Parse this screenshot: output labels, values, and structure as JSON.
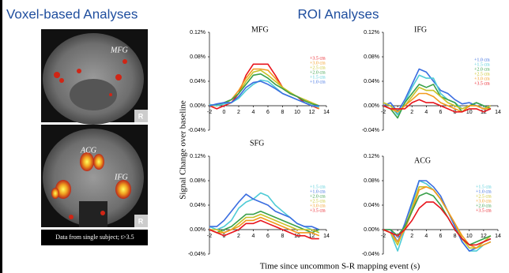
{
  "voxel": {
    "title": "Voxel-based Analyses",
    "caption": "Data from single subject; t>3.5",
    "labels": [
      "MFG",
      "ACG",
      "IFG"
    ],
    "side": "R"
  },
  "roi": {
    "title": "ROI Analyses",
    "ylabel": "Signal Change over baseline",
    "xlabel": "Time since uncommon S-R mapping event (s)"
  },
  "chart_data": [
    {
      "type": "line",
      "title": "MFG",
      "x": [
        -2,
        -1,
        0,
        1,
        2,
        3,
        4,
        5,
        6,
        7,
        8,
        9,
        10,
        11,
        12,
        13
      ],
      "xlim": [
        -2,
        14
      ],
      "xticks": [
        -2,
        0,
        2,
        4,
        6,
        8,
        10,
        12,
        14
      ],
      "ylim": [
        -0.04,
        0.12
      ],
      "yticks": [
        {
          "value": -0.04,
          "label": "-0.04%"
        },
        {
          "value": 0.0,
          "label": "0.00%"
        },
        {
          "value": 0.04,
          "label": "0.04%"
        },
        {
          "value": 0.08,
          "label": "0.08%"
        },
        {
          "value": 0.12,
          "label": "0.12%"
        }
      ],
      "series": [
        {
          "name": "+3.5 cm",
          "color": "#e8141c",
          "values": [
            0,
            -0.005,
            0,
            0.005,
            0.02,
            0.05,
            0.068,
            0.068,
            0.068,
            0.05,
            0.03,
            0.02,
            0.015,
            0.005,
            0,
            -0.005
          ]
        },
        {
          "name": "+3.0 cm",
          "color": "#f29a1e",
          "values": [
            0,
            0,
            0.005,
            0.01,
            0.025,
            0.045,
            0.06,
            0.06,
            0.058,
            0.045,
            0.03,
            0.02,
            0.015,
            0.01,
            0.005,
            -0.005
          ]
        },
        {
          "name": "+2.5 cm",
          "color": "#c9c227",
          "values": [
            0.002,
            0,
            0.003,
            0.01,
            0.02,
            0.04,
            0.055,
            0.058,
            0.05,
            0.04,
            0.03,
            0.022,
            0.015,
            0.01,
            0.005,
            0
          ]
        },
        {
          "name": "+2.0 cm",
          "color": "#3aa04a",
          "values": [
            0,
            0.002,
            0.005,
            0.01,
            0.02,
            0.035,
            0.05,
            0.052,
            0.045,
            0.035,
            0.028,
            0.02,
            0.015,
            0.008,
            0.003,
            0
          ]
        },
        {
          "name": "+1.5 cm",
          "color": "#4ecbd6",
          "values": [
            0.002,
            0,
            0.003,
            0.005,
            0.012,
            0.025,
            0.035,
            0.042,
            0.04,
            0.03,
            0.02,
            0.015,
            0.01,
            0.005,
            0,
            -0.002
          ]
        },
        {
          "name": "+1.0 cm",
          "color": "#3a6de0",
          "values": [
            0,
            0.003,
            0.005,
            0.005,
            0.015,
            0.03,
            0.038,
            0.04,
            0.035,
            0.028,
            0.02,
            0.015,
            0.01,
            0.005,
            0,
            0
          ]
        }
      ]
    },
    {
      "type": "line",
      "title": "IFG",
      "x": [
        -2,
        -1,
        0,
        1,
        2,
        3,
        4,
        5,
        6,
        7,
        8,
        9,
        10,
        11,
        12,
        13
      ],
      "xlim": [
        -2,
        14
      ],
      "xticks": [
        -2,
        0,
        2,
        4,
        6,
        8,
        10,
        12,
        14
      ],
      "ylim": [
        -0.04,
        0.12
      ],
      "yticks": [
        {
          "value": -0.04,
          "label": "-0.04%"
        },
        {
          "value": 0.0,
          "label": "0.00%"
        },
        {
          "value": 0.04,
          "label": "0.04%"
        },
        {
          "value": 0.08,
          "label": "0.08%"
        },
        {
          "value": 0.12,
          "label": "0.12%"
        }
      ],
      "series": [
        {
          "name": "+1.0 cm",
          "color": "#3a6de0",
          "values": [
            0,
            0.005,
            -0.01,
            0.01,
            0.035,
            0.06,
            0.055,
            0.04,
            0.025,
            0.02,
            0.01,
            0.003,
            0.005,
            0,
            -0.005,
            0
          ]
        },
        {
          "name": "+1.5 cm",
          "color": "#4ecbd6",
          "values": [
            0.005,
            0,
            -0.015,
            0.005,
            0.03,
            0.05,
            0.045,
            0.045,
            0.02,
            0.01,
            0.005,
            -0.005,
            0,
            0.005,
            0,
            -0.005
          ]
        },
        {
          "name": "+2.0 cm",
          "color": "#3aa04a",
          "values": [
            0,
            -0.005,
            -0.02,
            0.005,
            0.02,
            0.035,
            0.03,
            0.035,
            0.015,
            0.01,
            0.005,
            -0.01,
            0,
            0.005,
            0,
            -0.005
          ]
        },
        {
          "name": "+2.5 cm",
          "color": "#c9c227",
          "values": [
            0.005,
            0,
            -0.01,
            0,
            0.015,
            0.03,
            0.025,
            0.025,
            0.015,
            0.005,
            0,
            -0.005,
            0,
            0,
            -0.005,
            0
          ]
        },
        {
          "name": "+3.0 cm",
          "color": "#f29a1e",
          "values": [
            0,
            -0.005,
            -0.01,
            0,
            0.01,
            0.02,
            0.02,
            0.015,
            0.005,
            0,
            -0.005,
            -0.01,
            0,
            0,
            -0.005,
            -0.005
          ]
        },
        {
          "name": "+3.5 cm",
          "color": "#e8141c",
          "values": [
            0,
            -0.005,
            -0.005,
            -0.005,
            0.005,
            0.01,
            0.005,
            0.005,
            0,
            -0.005,
            -0.01,
            -0.01,
            -0.005,
            -0.005,
            -0.01,
            -0.005
          ]
        }
      ]
    },
    {
      "type": "line",
      "title": "SFG",
      "x": [
        -2,
        -1,
        0,
        1,
        2,
        3,
        4,
        5,
        6,
        7,
        8,
        9,
        10,
        11,
        12,
        13
      ],
      "xlim": [
        -2,
        14
      ],
      "xticks": [
        -2,
        0,
        2,
        4,
        6,
        8,
        10,
        12,
        14
      ],
      "ylim": [
        -0.04,
        0.12
      ],
      "yticks": [
        {
          "value": -0.04,
          "label": "-0.04%"
        },
        {
          "value": 0.0,
          "label": "0.00%"
        },
        {
          "value": 0.04,
          "label": "0.04%"
        },
        {
          "value": 0.08,
          "label": "0.08%"
        },
        {
          "value": 0.12,
          "label": "0.12%"
        }
      ],
      "series": [
        {
          "name": "+1.5 cm",
          "color": "#4ecbd6",
          "values": [
            0.005,
            0,
            0.005,
            0.015,
            0.035,
            0.045,
            0.05,
            0.06,
            0.055,
            0.04,
            0.03,
            0.02,
            0.01,
            0.005,
            0,
            -0.005
          ]
        },
        {
          "name": "+1.0 cm",
          "color": "#3a6de0",
          "values": [
            0.005,
            0.005,
            0.015,
            0.03,
            0.045,
            0.058,
            0.05,
            0.045,
            0.04,
            0.03,
            0.025,
            0.02,
            0.01,
            0.005,
            0.005,
            0
          ]
        },
        {
          "name": "+2.0 cm",
          "color": "#3aa04a",
          "values": [
            0,
            -0.005,
            0,
            0.005,
            0.015,
            0.025,
            0.025,
            0.03,
            0.025,
            0.02,
            0.015,
            0.01,
            0.005,
            0,
            -0.005,
            0
          ]
        },
        {
          "name": "+2.5 cm",
          "color": "#c9c227",
          "values": [
            0,
            0,
            -0.005,
            0,
            0.01,
            0.02,
            0.02,
            0.025,
            0.02,
            0.015,
            0.01,
            0.005,
            0,
            0,
            0,
            -0.005
          ]
        },
        {
          "name": "+3.0 cm",
          "color": "#f29a1e",
          "values": [
            0,
            -0.005,
            -0.005,
            0,
            0.005,
            0.015,
            0.015,
            0.02,
            0.015,
            0.01,
            0.005,
            0,
            -0.005,
            -0.005,
            -0.005,
            -0.01
          ]
        },
        {
          "name": "+3.5 cm",
          "color": "#e8141c",
          "values": [
            0,
            -0.005,
            -0.01,
            -0.005,
            0,
            0.01,
            0.01,
            0.015,
            0.01,
            0.005,
            0,
            -0.005,
            -0.01,
            -0.01,
            -0.015,
            -0.015
          ]
        }
      ]
    },
    {
      "type": "line",
      "title": "ACG",
      "x": [
        -2,
        -1,
        0,
        1,
        2,
        3,
        4,
        5,
        6,
        7,
        8,
        9,
        10,
        11,
        12,
        13
      ],
      "xlim": [
        -2,
        14
      ],
      "xticks": [
        -2,
        0,
        2,
        4,
        6,
        8,
        10,
        12,
        14
      ],
      "ylim": [
        -0.04,
        0.12
      ],
      "yticks": [
        {
          "value": -0.04,
          "label": "-0.04%"
        },
        {
          "value": 0.0,
          "label": "0.00%"
        },
        {
          "value": 0.04,
          "label": "0.04%"
        },
        {
          "value": 0.08,
          "label": "0.08%"
        },
        {
          "value": 0.12,
          "label": "0.12%"
        }
      ],
      "series": [
        {
          "name": "+1.5 cm",
          "color": "#4ecbd6",
          "values": [
            0,
            -0.005,
            -0.035,
            0,
            0.04,
            0.08,
            0.075,
            0.065,
            0.05,
            0.03,
            0.005,
            -0.02,
            -0.035,
            -0.035,
            -0.025,
            -0.02
          ]
        },
        {
          "name": "+1.0 cm",
          "color": "#3a6de0",
          "values": [
            0,
            0,
            -0.02,
            0.01,
            0.045,
            0.08,
            0.08,
            0.07,
            0.055,
            0.03,
            0.005,
            -0.02,
            -0.035,
            -0.03,
            -0.02,
            -0.015
          ]
        },
        {
          "name": "+2.5 cm",
          "color": "#c9c227",
          "values": [
            0,
            -0.005,
            -0.025,
            0.005,
            0.035,
            0.07,
            0.07,
            0.065,
            0.05,
            0.03,
            0.01,
            -0.015,
            -0.03,
            -0.03,
            -0.02,
            -0.01
          ]
        },
        {
          "name": "+3.0 cm",
          "color": "#f29a1e",
          "values": [
            0,
            -0.005,
            -0.02,
            0,
            0.03,
            0.065,
            0.07,
            0.065,
            0.05,
            0.03,
            0.01,
            -0.01,
            -0.025,
            -0.03,
            -0.025,
            -0.02
          ]
        },
        {
          "name": "+2.0 cm",
          "color": "#3aa04a",
          "values": [
            0,
            0,
            -0.01,
            0.005,
            0.03,
            0.055,
            0.06,
            0.055,
            0.04,
            0.02,
            0,
            -0.015,
            -0.025,
            -0.02,
            -0.015,
            -0.01
          ]
        },
        {
          "name": "+3.5 cm",
          "color": "#e8141c",
          "values": [
            0,
            -0.005,
            -0.01,
            0,
            0.015,
            0.035,
            0.045,
            0.045,
            0.035,
            0.02,
            0,
            -0.015,
            -0.025,
            -0.025,
            -0.02,
            -0.015
          ]
        }
      ]
    }
  ]
}
